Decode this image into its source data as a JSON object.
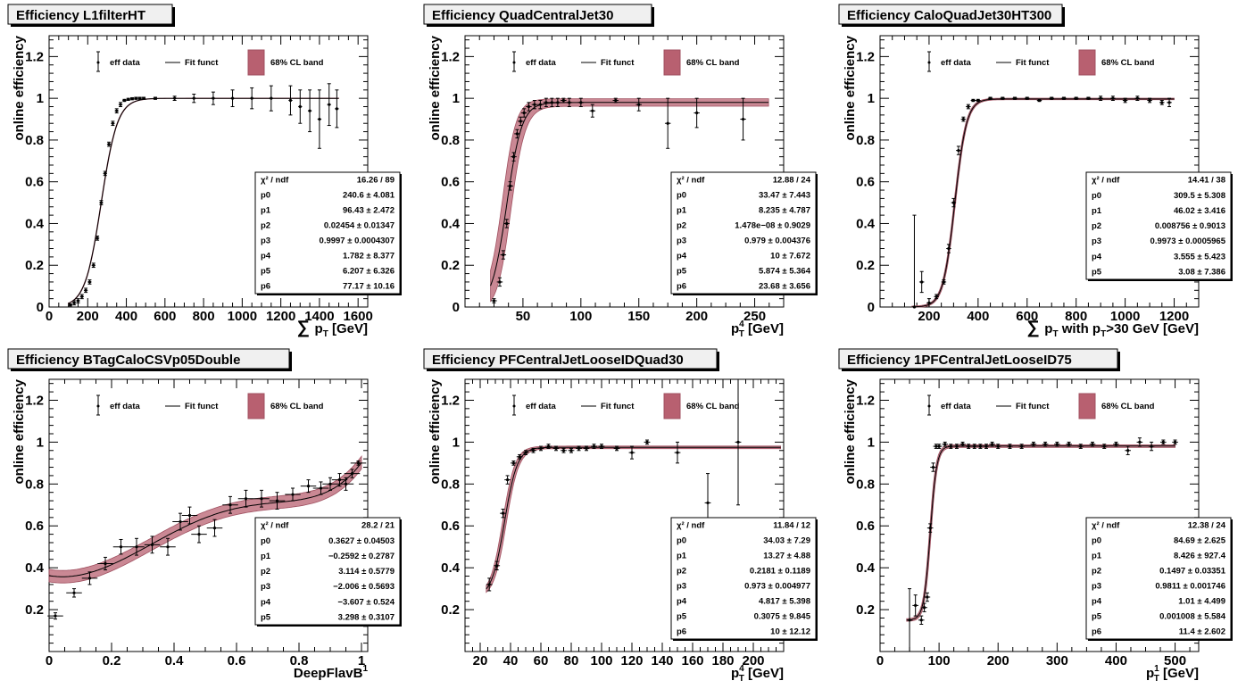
{
  "chart_data": [
    {
      "type": "scatter",
      "title": "Efficiency L1filterHT",
      "ylabel": "online efficiency",
      "xlabel": "∑ p_T [GeV]",
      "xlabel_parts": {
        "sym": "∑",
        "p": "p",
        "sub": "T",
        "rest": "[GeV]"
      },
      "xlim": [
        0,
        1650
      ],
      "ylim": [
        0,
        1.3
      ],
      "xticks": [
        0,
        200,
        400,
        600,
        800,
        1000,
        1200,
        1400,
        1600
      ],
      "xtick_labels": [
        "0",
        "200",
        "400",
        "600",
        "800",
        "1000",
        "1200",
        "1400",
        "1600"
      ],
      "yticks": [
        0,
        0.2,
        0.4,
        0.6,
        0.8,
        1,
        1.2
      ],
      "ytick_labels": [
        "0",
        "0.2",
        "0.4",
        "0.6",
        "0.8",
        "1",
        "1.2"
      ],
      "legend": [
        "eff data",
        "Fit funct",
        "68% CL band"
      ],
      "fit": {
        "x0": 270,
        "w": 42,
        "lo": 0.0,
        "hi": 1.0,
        "xmin": 100,
        "xmax": 1500,
        "band": 0.003
      },
      "x": [
        110,
        130,
        150,
        170,
        190,
        210,
        230,
        250,
        270,
        290,
        310,
        330,
        350,
        370,
        390,
        410,
        430,
        450,
        470,
        490,
        550,
        650,
        750,
        850,
        950,
        1050,
        1150,
        1250,
        1300,
        1350,
        1400,
        1450,
        1490
      ],
      "y": [
        0.01,
        0.02,
        0.03,
        0.05,
        0.08,
        0.12,
        0.2,
        0.33,
        0.5,
        0.64,
        0.78,
        0.88,
        0.94,
        0.97,
        0.99,
        0.995,
        0.998,
        1.0,
        1.0,
        1.0,
        1.0,
        1.0,
        1.0,
        1.0,
        1.0,
        1.0,
        1.0,
        0.99,
        0.96,
        0.94,
        0.9,
        0.97,
        0.95
      ],
      "xerr": 10,
      "yerr": [
        0.005,
        0.01,
        0.01,
        0.01,
        0.01,
        0.01,
        0.01,
        0.01,
        0.01,
        0.01,
        0.01,
        0.01,
        0.01,
        0.01,
        0.005,
        0.005,
        0.005,
        0.005,
        0.005,
        0.005,
        0.005,
        0.01,
        0.02,
        0.03,
        0.04,
        0.05,
        0.06,
        0.07,
        0.08,
        0.1,
        0.14,
        0.1,
        0.09
      ],
      "stats": [
        {
          "name": "χ² / ndf",
          "value": "16.26 / 89"
        },
        {
          "name": "p0",
          "value": "240.6 ± 4.081"
        },
        {
          "name": "p1",
          "value": "96.43 ± 2.472"
        },
        {
          "name": "p2",
          "value": "0.02454 ± 0.01347"
        },
        {
          "name": "p3",
          "value": "0.9997 ± 0.0004307"
        },
        {
          "name": "p4",
          "value": "1.782 ± 8.377"
        },
        {
          "name": "p5",
          "value": "6.207 ± 6.326"
        },
        {
          "name": "p6",
          "value": "77.17 ± 10.16"
        }
      ]
    },
    {
      "type": "scatter",
      "title": "Efficiency QuadCentralJet30",
      "ylabel": "online efficiency",
      "xlabel": "p_T^4 [GeV]",
      "xlabel_parts": {
        "sym": "",
        "p": "p",
        "sub": "T",
        "sup": "4",
        "rest": "[GeV]"
      },
      "xlim": [
        0,
        275
      ],
      "ylim": [
        0,
        1.3
      ],
      "xticks": [
        50,
        100,
        150,
        200,
        250
      ],
      "xtick_labels": [
        "50",
        "100",
        "150",
        "200",
        "250"
      ],
      "yticks": [
        0,
        0.2,
        0.4,
        0.6,
        0.8,
        1,
        1.2
      ],
      "ytick_labels": [
        "0",
        "0.2",
        "0.4",
        "0.6",
        "0.8",
        "1",
        "1.2"
      ],
      "legend": [
        "eff data",
        "Fit funct",
        "68% CL band"
      ],
      "fit": {
        "x0": 36,
        "w": 6.5,
        "lo": 0.0,
        "hi": 0.98,
        "xmin": 22,
        "xmax": 262,
        "band": 0.06
      },
      "x": [
        25,
        30,
        33,
        36,
        39,
        42,
        45,
        48,
        51,
        55,
        60,
        65,
        70,
        75,
        80,
        85,
        90,
        100,
        110,
        130,
        150,
        175,
        200,
        240
      ],
      "y": [
        0.03,
        0.12,
        0.25,
        0.4,
        0.58,
        0.72,
        0.83,
        0.89,
        0.93,
        0.96,
        0.97,
        0.97,
        0.98,
        0.98,
        0.98,
        0.99,
        0.98,
        0.98,
        0.94,
        0.99,
        0.97,
        0.88,
        0.93,
        0.9
      ],
      "xerr": 2.5,
      "yerr": [
        0.01,
        0.02,
        0.02,
        0.02,
        0.02,
        0.02,
        0.02,
        0.02,
        0.02,
        0.02,
        0.02,
        0.02,
        0.02,
        0.02,
        0.02,
        0.01,
        0.02,
        0.02,
        0.03,
        0.01,
        0.03,
        0.12,
        0.07,
        0.1
      ],
      "stats": [
        {
          "name": "χ² / ndf",
          "value": "12.88 / 24"
        },
        {
          "name": "p0",
          "value": "33.47 ± 7.443"
        },
        {
          "name": "p1",
          "value": "8.235 ± 4.787"
        },
        {
          "name": "p2",
          "value": "1.478e−08 ± 0.9029"
        },
        {
          "name": "p3",
          "value": "0.979 ± 0.004376"
        },
        {
          "name": "p4",
          "value": "10 ± 7.672"
        },
        {
          "name": "p5",
          "value": "5.874 ± 5.364"
        },
        {
          "name": "p6",
          "value": "23.68 ± 3.656"
        }
      ]
    },
    {
      "type": "scatter",
      "title": "Efficiency CaloQuadJet30HT300",
      "ylabel": "online efficiency",
      "xlabel": "∑ p_T with p_T>30 GeV [GeV]",
      "xlabel_parts": {
        "sym": "∑",
        "p": "p",
        "sub": "T",
        "rest": "with p",
        "sub2": "T",
        "rest2": ">30 GeV [GeV]"
      },
      "xlim": [
        0,
        1300
      ],
      "ylim": [
        0,
        1.3
      ],
      "xticks": [
        200,
        400,
        600,
        800,
        1000,
        1200
      ],
      "xtick_labels": [
        "200",
        "400",
        "600",
        "800",
        "1000",
        "1200"
      ],
      "yticks": [
        0,
        0.2,
        0.4,
        0.6,
        0.8,
        1,
        1.2
      ],
      "ytick_labels": [
        "0",
        "0.2",
        "0.4",
        "0.6",
        "0.8",
        "1",
        "1.2"
      ],
      "legend": [
        "eff data",
        "Fit funct",
        "68% CL band"
      ],
      "fit": {
        "x0": 305,
        "w": 24,
        "lo": 0.0,
        "hi": 0.997,
        "xmin": 130,
        "xmax": 1200,
        "band": 0.012
      },
      "x": [
        140,
        170,
        200,
        230,
        260,
        280,
        300,
        320,
        340,
        360,
        380,
        400,
        450,
        500,
        550,
        600,
        650,
        700,
        750,
        800,
        850,
        900,
        950,
        1000,
        1050,
        1100,
        1150,
        1180
      ],
      "y": [
        0.0,
        0.12,
        0.02,
        0.05,
        0.12,
        0.28,
        0.5,
        0.75,
        0.9,
        0.96,
        0.99,
        0.99,
        1.0,
        1.0,
        1.0,
        1.0,
        0.99,
        1.0,
        1.0,
        1.0,
        1.0,
        1.0,
        1.0,
        0.99,
        1.0,
        0.99,
        0.98,
        0.98
      ],
      "xerr": 10,
      "yerr": [
        0.44,
        0.05,
        0.02,
        0.01,
        0.01,
        0.02,
        0.02,
        0.02,
        0.01,
        0.01,
        0.005,
        0.005,
        0.005,
        0.005,
        0.005,
        0.005,
        0.005,
        0.005,
        0.005,
        0.005,
        0.005,
        0.01,
        0.01,
        0.01,
        0.01,
        0.01,
        0.01,
        0.02
      ],
      "stats": [
        {
          "name": "χ² / ndf",
          "value": "14.41 / 38"
        },
        {
          "name": "p0",
          "value": "309.5 ± 5.308"
        },
        {
          "name": "p1",
          "value": "46.02 ± 3.416"
        },
        {
          "name": "p2",
          "value": "0.008756 ± 0.9013"
        },
        {
          "name": "p3",
          "value": "0.9973 ± 0.0005965"
        },
        {
          "name": "p4",
          "value": "3.555 ± 5.423"
        },
        {
          "name": "p5",
          "value": "3.08 ± 7.386"
        }
      ]
    },
    {
      "type": "scatter",
      "title": "Efficiency BTagCaloCSVp05Double",
      "ylabel": "online efficiency",
      "xlabel": "DeepFlavB^1",
      "xlabel_parts": {
        "sym": "",
        "p": "DeepFlavB",
        "sub": "",
        "sup": "1",
        "rest": ""
      },
      "xlim": [
        0,
        1.02
      ],
      "ylim": [
        0,
        1.3
      ],
      "xticks": [
        0,
        0.2,
        0.4,
        0.6,
        0.8,
        1
      ],
      "xtick_labels": [
        "0",
        "0.2",
        "0.4",
        "0.6",
        "0.8",
        "1"
      ],
      "yticks": [
        0.2,
        0.4,
        0.6,
        0.8,
        1,
        1.2
      ],
      "ytick_labels": [
        "0.2",
        "0.4",
        "0.6",
        "0.8",
        "1",
        "1.2"
      ],
      "legend": [
        "eff data",
        "Fit funct",
        "68% CL band"
      ],
      "fit": {
        "poly": [
          0.3627,
          -0.2592,
          3.114,
          -2.006,
          -3.607,
          3.298
        ],
        "xmin": 0,
        "xmax": 1.0,
        "band": 0.03
      },
      "x": [
        0.02,
        0.08,
        0.13,
        0.18,
        0.23,
        0.28,
        0.33,
        0.38,
        0.42,
        0.45,
        0.48,
        0.53,
        0.58,
        0.63,
        0.68,
        0.73,
        0.78,
        0.83,
        0.87,
        0.9,
        0.93,
        0.95,
        0.97,
        0.99
      ],
      "y": [
        0.17,
        0.28,
        0.35,
        0.42,
        0.5,
        0.5,
        0.51,
        0.5,
        0.62,
        0.65,
        0.56,
        0.59,
        0.7,
        0.73,
        0.73,
        0.72,
        0.75,
        0.79,
        0.78,
        0.8,
        0.82,
        0.8,
        0.85,
        0.9
      ],
      "xerr": 0.025,
      "yerr": [
        0.015,
        0.02,
        0.03,
        0.03,
        0.035,
        0.04,
        0.04,
        0.04,
        0.04,
        0.04,
        0.04,
        0.04,
        0.04,
        0.04,
        0.04,
        0.04,
        0.03,
        0.03,
        0.03,
        0.03,
        0.03,
        0.03,
        0.02,
        0.01
      ],
      "stats": [
        {
          "name": "χ² / ndf",
          "value": "28.2 / 21"
        },
        {
          "name": "p0",
          "value": "0.3627 ± 0.04503"
        },
        {
          "name": "p1",
          "value": "−0.2592 ± 0.2787"
        },
        {
          "name": "p2",
          "value": "3.114 ± 0.5779"
        },
        {
          "name": "p3",
          "value": "−2.006 ± 0.5693"
        },
        {
          "name": "p4",
          "value": "−3.607 ± 0.524"
        },
        {
          "name": "p5",
          "value": "3.298 ± 0.3107"
        }
      ]
    },
    {
      "type": "scatter",
      "title": "Efficiency PFCentralJetLooseIDQuad30",
      "ylabel": "online efficiency",
      "xlabel": "p_T^4 [GeV]",
      "xlabel_parts": {
        "sym": "",
        "p": "p",
        "sub": "T",
        "sup": "4",
        "rest": "[GeV]"
      },
      "xlim": [
        10,
        220
      ],
      "ylim": [
        0,
        1.3
      ],
      "xticks": [
        20,
        40,
        60,
        80,
        100,
        120,
        140,
        160,
        180,
        200
      ],
      "xtick_labels": [
        "20",
        "40",
        "60",
        "80",
        "100",
        "120",
        "140",
        "160",
        "180",
        "200"
      ],
      "yticks": [
        0.2,
        0.4,
        0.6,
        0.8,
        1,
        1.2
      ],
      "ytick_labels": [
        "0.2",
        "0.4",
        "0.6",
        "0.8",
        "1",
        "1.2"
      ],
      "legend": [
        "eff data",
        "Fit funct",
        "68% CL band"
      ],
      "fit": {
        "x0": 36,
        "w": 4.2,
        "lo": 0.26,
        "hi": 0.975,
        "xmin": 24,
        "xmax": 218,
        "band": 0.02
      },
      "x": [
        26,
        31,
        35,
        38,
        42,
        46,
        50,
        55,
        60,
        65,
        70,
        75,
        80,
        85,
        90,
        95,
        100,
        110,
        120,
        130,
        150,
        170,
        190
      ],
      "y": [
        0.32,
        0.41,
        0.66,
        0.82,
        0.9,
        0.93,
        0.95,
        0.96,
        0.97,
        0.98,
        0.97,
        0.96,
        0.96,
        0.97,
        0.97,
        0.98,
        0.98,
        0.97,
        0.95,
        1.0,
        0.95,
        0.71,
        1.0
      ],
      "xerr": 2,
      "yerr": [
        0.03,
        0.02,
        0.02,
        0.02,
        0.01,
        0.01,
        0.01,
        0.01,
        0.01,
        0.01,
        0.01,
        0.01,
        0.01,
        0.01,
        0.01,
        0.01,
        0.01,
        0.01,
        0.03,
        0.01,
        0.05,
        0.14,
        0.3
      ],
      "stats": [
        {
          "name": "χ² / ndf",
          "value": "11.84 / 12"
        },
        {
          "name": "p0",
          "value": "34.03 ± 7.29"
        },
        {
          "name": "p1",
          "value": "13.27 ± 4.88"
        },
        {
          "name": "p2",
          "value": "0.2181 ± 0.1189"
        },
        {
          "name": "p3",
          "value": "0.973 ± 0.004977"
        },
        {
          "name": "p4",
          "value": "4.817 ± 5.398"
        },
        {
          "name": "p5",
          "value": "0.3075 ± 9.845"
        },
        {
          "name": "p6",
          "value": "10 ± 12.12"
        }
      ]
    },
    {
      "type": "scatter",
      "title": "Efficiency 1PFCentralJetLooseID75",
      "ylabel": "online efficiency",
      "xlabel": "p_T^1 [GeV]",
      "xlabel_parts": {
        "sym": "",
        "p": "p",
        "sub": "T",
        "sup": "1",
        "rest": "[GeV]"
      },
      "xlim": [
        0,
        540
      ],
      "ylim": [
        0,
        1.3
      ],
      "xticks": [
        0,
        100,
        200,
        300,
        400,
        500
      ],
      "xtick_labels": [
        "0",
        "100",
        "200",
        "300",
        "400",
        "500"
      ],
      "yticks": [
        0.2,
        0.4,
        0.6,
        0.8,
        1,
        1.2
      ],
      "ytick_labels": [
        "0.2",
        "0.4",
        "0.6",
        "0.8",
        "1",
        "1.2"
      ],
      "legend": [
        "eff data",
        "Fit funct",
        "68% CL band"
      ],
      "fit": {
        "x0": 85,
        "w": 5.5,
        "lo": 0.15,
        "hi": 0.981,
        "xmin": 45,
        "xmax": 500,
        "band": 0.02
      },
      "x": [
        50,
        60,
        70,
        75,
        80,
        85,
        90,
        95,
        100,
        110,
        120,
        130,
        140,
        150,
        160,
        170,
        180,
        190,
        200,
        220,
        240,
        260,
        280,
        300,
        320,
        340,
        360,
        380,
        400,
        420,
        440,
        460,
        480,
        500
      ],
      "y": [
        0.15,
        0.22,
        0.15,
        0.21,
        0.26,
        0.59,
        0.88,
        0.98,
        0.98,
        0.99,
        0.98,
        0.98,
        0.99,
        0.98,
        0.98,
        0.98,
        0.98,
        0.99,
        0.98,
        0.98,
        0.98,
        0.99,
        0.99,
        0.99,
        0.99,
        0.98,
        0.99,
        0.98,
        0.99,
        0.96,
        1.0,
        0.98,
        1.0,
        1.0
      ],
      "xerr": 5,
      "yerr": [
        0.15,
        0.05,
        0.02,
        0.02,
        0.02,
        0.02,
        0.02,
        0.01,
        0.01,
        0.01,
        0.01,
        0.01,
        0.01,
        0.01,
        0.01,
        0.01,
        0.01,
        0.01,
        0.01,
        0.01,
        0.01,
        0.01,
        0.01,
        0.01,
        0.01,
        0.01,
        0.01,
        0.01,
        0.01,
        0.02,
        0.02,
        0.02,
        0.01,
        0.01
      ],
      "stats": [
        {
          "name": "χ² / ndf",
          "value": "12.38 / 24"
        },
        {
          "name": "p0",
          "value": "84.69 ± 2.625"
        },
        {
          "name": "p1",
          "value": "8.426 ± 927.4"
        },
        {
          "name": "p2",
          "value": "0.1497 ± 0.03351"
        },
        {
          "name": "p3",
          "value": "0.9811 ± 0.001746"
        },
        {
          "name": "p4",
          "value": "1.01 ± 4.499"
        },
        {
          "name": "p5",
          "value": "0.001008 ± 5.584"
        },
        {
          "name": "p6",
          "value": "11.4 ± 2.602"
        }
      ]
    }
  ],
  "colors": {
    "band": "#a05060",
    "band_fill": "#b86070",
    "fit": "#000000",
    "data": "#000000"
  }
}
